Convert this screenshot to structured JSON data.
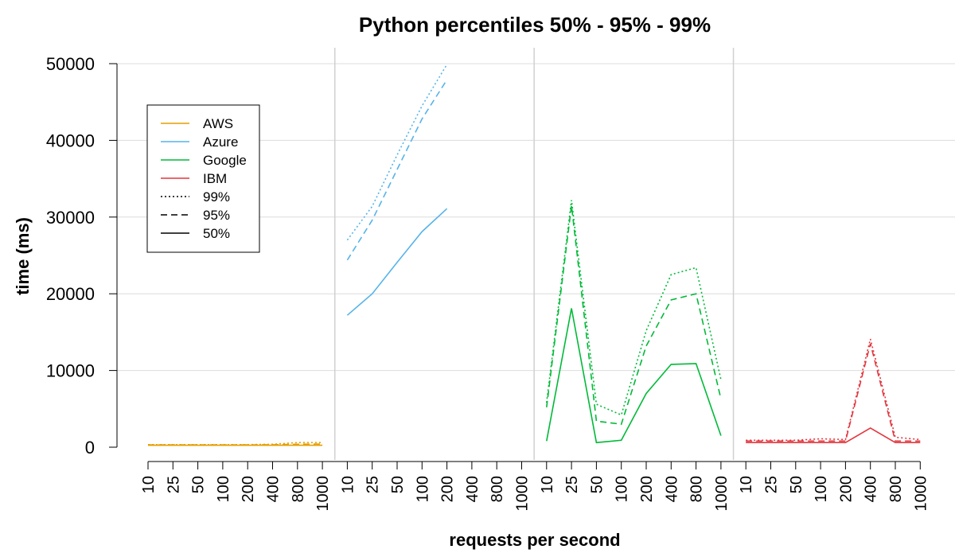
{
  "chart_data": {
    "type": "line",
    "title": "Python percentiles 50% - 95% - 99%",
    "xlabel": "requests per second",
    "ylabel": "time (ms)",
    "ylim": [
      0,
      50000
    ],
    "yticks": [
      0,
      10000,
      20000,
      30000,
      40000,
      50000
    ],
    "grid": true,
    "legend_position": "top-left",
    "categories": [
      "10",
      "25",
      "50",
      "100",
      "200",
      "400",
      "800",
      "1000"
    ],
    "providers": [
      {
        "name": "AWS",
        "color": "#E69F00",
        "p50": [
          250,
          250,
          250,
          250,
          250,
          250,
          250,
          250
        ],
        "p95": [
          300,
          300,
          300,
          300,
          300,
          320,
          380,
          420
        ],
        "p99": [
          330,
          330,
          330,
          330,
          330,
          380,
          600,
          600
        ]
      },
      {
        "name": "Azure",
        "color": "#56B4E9",
        "p50": [
          17200,
          20000,
          24100,
          28100,
          31100,
          null,
          null,
          null
        ],
        "p95": [
          24400,
          29600,
          36200,
          42800,
          47900,
          null,
          null,
          null
        ],
        "p99": [
          27000,
          31400,
          38100,
          44500,
          49900,
          null,
          null,
          null
        ]
      },
      {
        "name": "Google",
        "color": "#00BA38",
        "p50": [
          800,
          18100,
          600,
          900,
          7000,
          10800,
          10900,
          1500
        ],
        "p95": [
          5200,
          31500,
          3400,
          3000,
          13200,
          19200,
          20000,
          6300
        ],
        "p99": [
          5800,
          32200,
          5600,
          4200,
          15200,
          22500,
          23400,
          8800
        ]
      },
      {
        "name": "IBM",
        "color": "#E2373E",
        "p50": [
          600,
          600,
          600,
          600,
          600,
          2500,
          600,
          600
        ],
        "p95": [
          800,
          800,
          800,
          800,
          800,
          13500,
          800,
          800
        ],
        "p99": [
          900,
          900,
          900,
          1100,
          1000,
          14100,
          1300,
          1000
        ]
      }
    ],
    "legend": [
      {
        "label": "AWS",
        "color": "#E69F00",
        "dash": "solid"
      },
      {
        "label": "Azure",
        "color": "#56B4E9",
        "dash": "solid"
      },
      {
        "label": "Google",
        "color": "#00BA38",
        "dash": "solid"
      },
      {
        "label": "IBM",
        "color": "#E2373E",
        "dash": "solid"
      },
      {
        "label": "99%",
        "color": "#000000",
        "dash": "dotted"
      },
      {
        "label": "95%",
        "color": "#000000",
        "dash": "dashed"
      },
      {
        "label": "50%",
        "color": "#000000",
        "dash": "solid"
      }
    ]
  }
}
